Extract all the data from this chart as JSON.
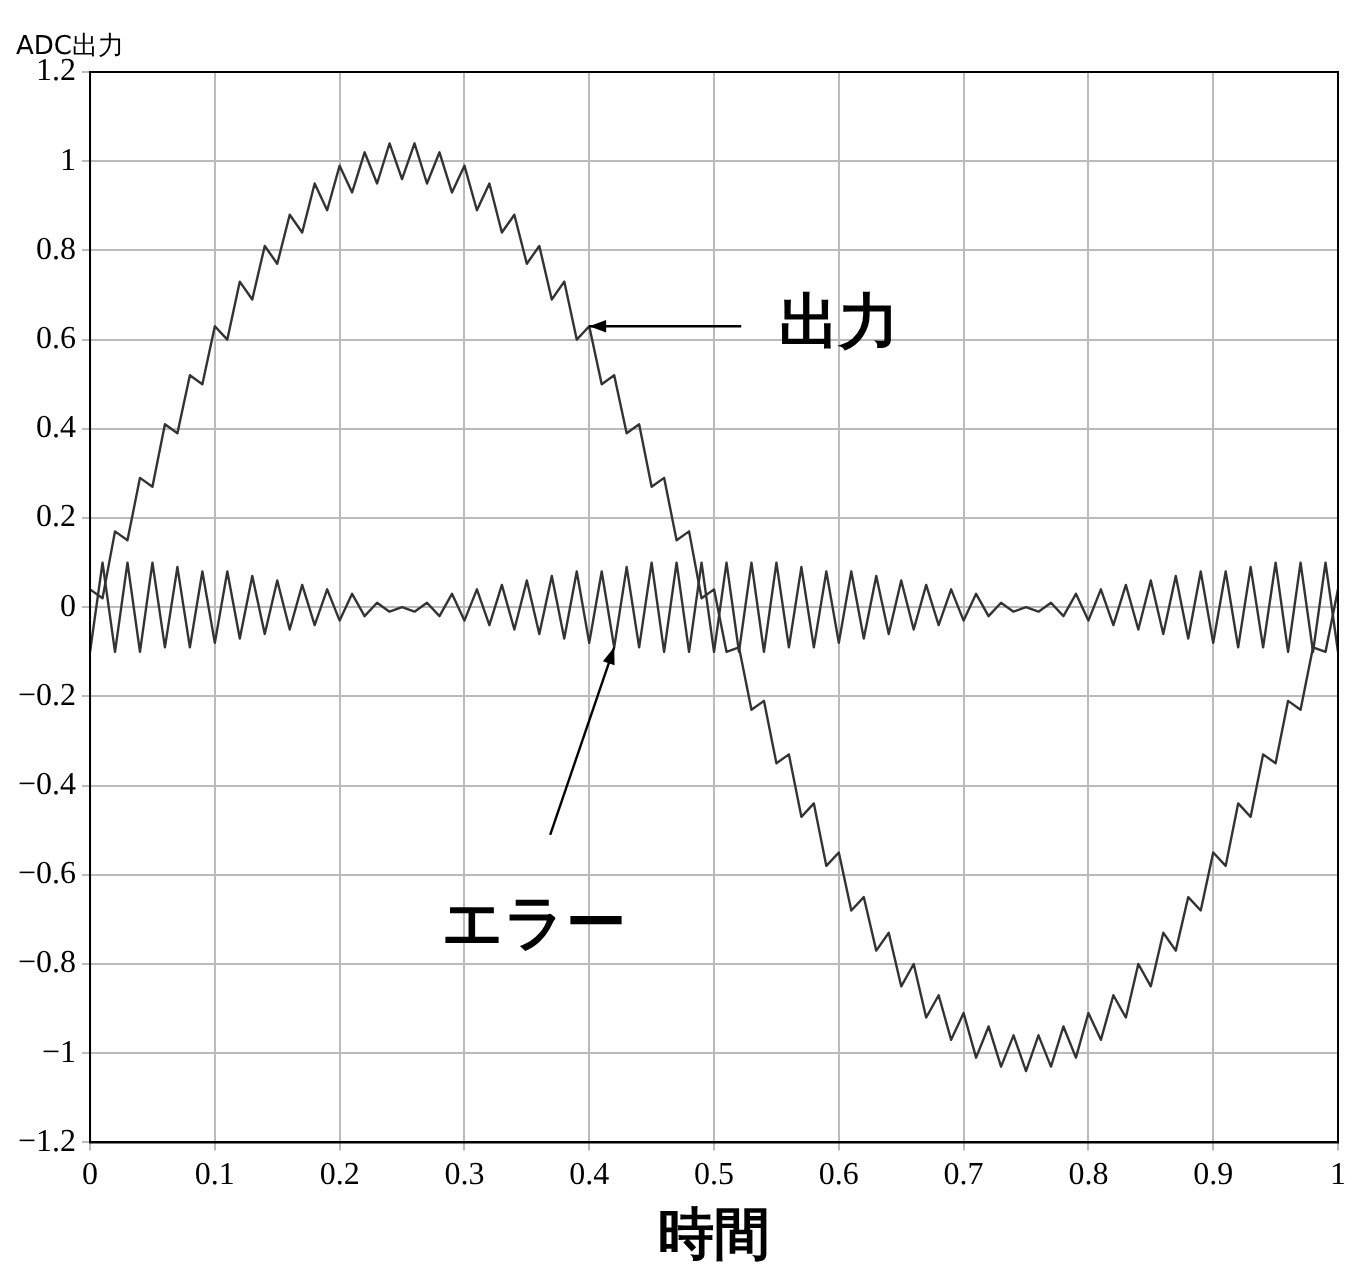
{
  "chart_data": {
    "type": "line",
    "xlabel": "時間",
    "ylabel": "ADC出力",
    "x": [
      0,
      0.01,
      0.02,
      0.03,
      0.04,
      0.05,
      0.06,
      0.07,
      0.08,
      0.09,
      0.1,
      0.11,
      0.12,
      0.13,
      0.14,
      0.15,
      0.16,
      0.17,
      0.18,
      0.19,
      0.2,
      0.21,
      0.22,
      0.23,
      0.24,
      0.25,
      0.26,
      0.27,
      0.28,
      0.29,
      0.3,
      0.31,
      0.32,
      0.33,
      0.34,
      0.35,
      0.36,
      0.37,
      0.38,
      0.39,
      0.4,
      0.41,
      0.42,
      0.43,
      0.44,
      0.45,
      0.46,
      0.47,
      0.48,
      0.49,
      0.5,
      0.51,
      0.52,
      0.53,
      0.54,
      0.55,
      0.56,
      0.57,
      0.58,
      0.59,
      0.6,
      0.61,
      0.62,
      0.63,
      0.64,
      0.65,
      0.66,
      0.67,
      0.68,
      0.69,
      0.7,
      0.71,
      0.72,
      0.73,
      0.74,
      0.75,
      0.76,
      0.77,
      0.78,
      0.79,
      0.8,
      0.81,
      0.82,
      0.83,
      0.84,
      0.85,
      0.86,
      0.87,
      0.88,
      0.89,
      0.9,
      0.91,
      0.92,
      0.93,
      0.94,
      0.95,
      0.96,
      0.97,
      0.98,
      0.99,
      1
    ],
    "series": [
      {
        "color": "#333333",
        "values": [
          0.04,
          0.02,
          0.17,
          0.15,
          0.29,
          0.27,
          0.41,
          0.39,
          0.52,
          0.5,
          0.63,
          0.6,
          0.73,
          0.69,
          0.81,
          0.77,
          0.88,
          0.84,
          0.95,
          0.89,
          0.99,
          0.93,
          1.02,
          0.95,
          1.04,
          0.96,
          1.04,
          0.95,
          1.02,
          0.93,
          0.99,
          0.89,
          0.95,
          0.84,
          0.88,
          0.77,
          0.81,
          0.69,
          0.73,
          0.6,
          0.63,
          0.5,
          0.52,
          0.39,
          0.41,
          0.27,
          0.29,
          0.15,
          0.17,
          0.02,
          0.04,
          -0.1,
          -0.09,
          -0.23,
          -0.21,
          -0.35,
          -0.33,
          -0.47,
          -0.44,
          -0.58,
          -0.55,
          -0.68,
          -0.65,
          -0.77,
          -0.73,
          -0.85,
          -0.8,
          -0.92,
          -0.87,
          -0.97,
          -0.91,
          -1.01,
          -0.94,
          -1.03,
          -0.96,
          -1.04,
          -0.96,
          -1.03,
          -0.94,
          -1.01,
          -0.91,
          -0.97,
          -0.87,
          -0.92,
          -0.8,
          -0.85,
          -0.73,
          -0.77,
          -0.65,
          -0.68,
          -0.55,
          -0.58,
          -0.44,
          -0.47,
          -0.33,
          -0.35,
          -0.21,
          -0.23,
          -0.09,
          -0.1,
          0.04
        ]
      },
      {
        "color": "#333333",
        "values": [
          -0.1,
          0.1,
          -0.1,
          0.1,
          -0.1,
          0.1,
          -0.09,
          0.09,
          -0.09,
          0.08,
          -0.08,
          0.08,
          -0.07,
          0.07,
          -0.06,
          0.06,
          -0.05,
          0.05,
          -0.04,
          0.04,
          -0.03,
          0.03,
          -0.02,
          0.01,
          -0.01,
          0,
          -0.01,
          0.01,
          -0.02,
          0.03,
          -0.03,
          0.04,
          -0.04,
          0.05,
          -0.05,
          0.06,
          -0.06,
          0.07,
          -0.07,
          0.08,
          -0.08,
          0.08,
          -0.09,
          0.09,
          -0.09,
          0.1,
          -0.1,
          0.1,
          -0.1,
          0.1,
          -0.1,
          0.1,
          -0.1,
          0.1,
          -0.1,
          0.1,
          -0.09,
          0.09,
          -0.09,
          0.08,
          -0.08,
          0.08,
          -0.07,
          0.07,
          -0.06,
          0.06,
          -0.05,
          0.05,
          -0.04,
          0.04,
          -0.03,
          0.03,
          -0.02,
          0.01,
          -0.01,
          0,
          -0.01,
          0.01,
          -0.02,
          0.03,
          -0.03,
          0.04,
          -0.04,
          0.05,
          -0.05,
          0.06,
          -0.06,
          0.07,
          -0.07,
          0.08,
          -0.08,
          0.08,
          -0.09,
          0.09,
          -0.09,
          0.1,
          -0.1,
          0.1,
          -0.1,
          0.1,
          -0.1
        ]
      }
    ],
    "annotations": [
      {
        "text": "出力",
        "x": 0.4,
        "y": 0.63
      },
      {
        "text": "エラー",
        "x": 0.42,
        "y": -0.09
      }
    ],
    "xlim": [
      0,
      1
    ],
    "xticks": [
      0,
      0.1,
      0.2,
      0.3,
      0.4,
      0.5,
      0.6,
      0.7,
      0.8,
      0.9,
      1
    ],
    "ylim": [
      -1.2,
      1.2
    ],
    "yticks": [
      {
        "value": -1.2,
        "label": "−1.2"
      },
      {
        "value": -1,
        "label": "−1"
      },
      {
        "value": -0.8,
        "label": "−0.8"
      },
      {
        "value": -0.6,
        "label": "−0.6"
      },
      {
        "value": -0.4,
        "label": "−0.4"
      },
      {
        "value": -0.2,
        "label": "−0.2"
      },
      0,
      0.2,
      0.4,
      0.6,
      0.8,
      1,
      1.2
    ],
    "grid": true,
    "legend": false,
    "marker": "none",
    "line_style": "solid"
  }
}
